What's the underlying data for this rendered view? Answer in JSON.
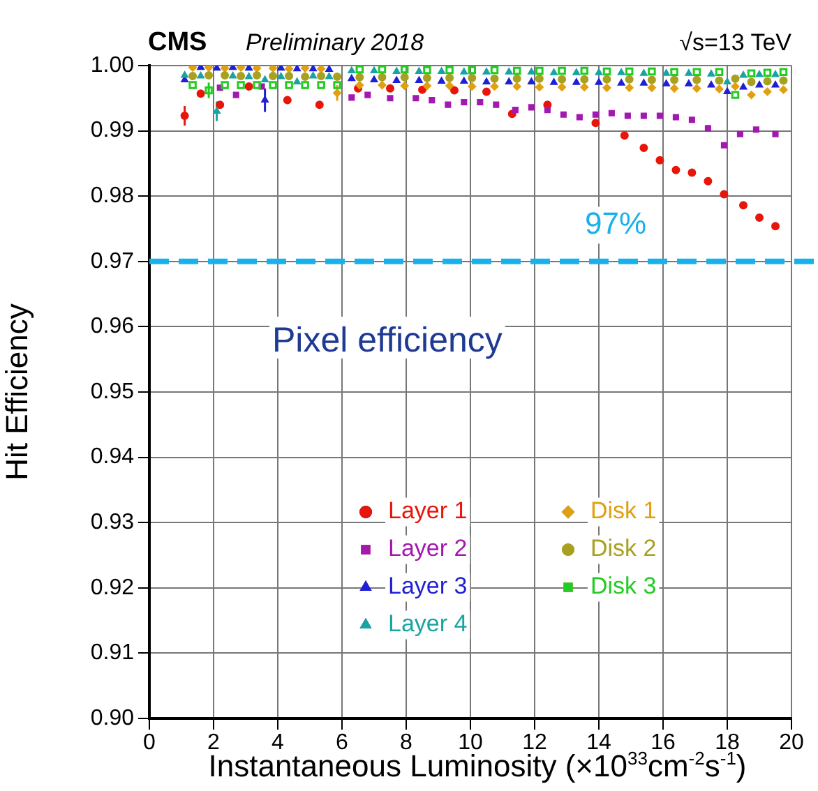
{
  "chart_data": {
    "type": "scatter",
    "title": "CMS",
    "subtitle": "Preliminary 2018",
    "xlabel": "Instantaneous Luminosity (×10$^{33}$cm$^{-2}$s$^{-1}$)",
    "ylabel": "Hit Efficiency",
    "annotations": [
      "√s=13 TeV",
      "Pixel efficiency"
    ],
    "xlim": [
      0,
      20
    ],
    "xticks": [
      0,
      2,
      4,
      6,
      8,
      10,
      12,
      14,
      16,
      18,
      20
    ],
    "ylim": [
      0.9,
      1.0
    ],
    "yticks": [
      {
        "value": 0.9,
        "label": "0.90"
      },
      {
        "value": 0.91,
        "label": "0.91"
      },
      {
        "value": 0.92,
        "label": "0.92"
      },
      {
        "value": 0.93,
        "label": "0.93"
      },
      {
        "value": 0.94,
        "label": "0.94"
      },
      {
        "value": 0.95,
        "label": "0.95"
      },
      {
        "value": 0.96,
        "label": "0.96"
      },
      {
        "value": 0.97,
        "label": "0.97"
      },
      {
        "value": 0.98,
        "label": "0.98"
      },
      {
        "value": 0.99,
        "label": "0.99"
      },
      {
        "value": 1.0,
        "label": "1.00"
      }
    ],
    "grid": true,
    "legend": "bottom",
    "ref_lines": [
      {
        "axis": "y",
        "value": 0.97,
        "label": "97%",
        "color": "#1ab0ec",
        "line_style": "dashed"
      }
    ],
    "series": [
      {
        "name": "Layer 1",
        "color": "#e8150b",
        "marker": "circle",
        "x": [
          1.1,
          1.6,
          2.2,
          3.1,
          4.3,
          5.3,
          6.5,
          7.5,
          8.5,
          9.5,
          10.5,
          11.3,
          12.4,
          13.4,
          13.9,
          14.8,
          15.4,
          15.9,
          16.4,
          16.9,
          17.4,
          17.9,
          18.5,
          19.0,
          19.5
        ],
        "values": [
          0.9923,
          0.9957,
          0.994,
          0.9968,
          0.9947,
          0.994,
          0.9965,
          0.9965,
          0.9963,
          0.9962,
          0.996,
          0.9926,
          0.994,
          null,
          0.9912,
          0.9893,
          0.9874,
          0.9855,
          0.984,
          0.9836,
          0.9823,
          0.9803,
          0.9786,
          0.9767,
          0.9754
        ],
        "errors": [
          0.0015,
          0.0005,
          0.0005,
          0.0005,
          0.0005,
          0.0003,
          null,
          null,
          null,
          null,
          null,
          null,
          null,
          null,
          null,
          null,
          null,
          null,
          null,
          null,
          null,
          null,
          null,
          null,
          null
        ]
      },
      {
        "name": "Layer 2",
        "color": "#a318b0",
        "marker": "square",
        "x": [
          2.2,
          2.7,
          3.5,
          6.3,
          6.8,
          7.5,
          8.3,
          8.8,
          9.3,
          9.8,
          10.3,
          10.8,
          11.4,
          11.9,
          12.4,
          12.9,
          13.4,
          13.9,
          14.4,
          14.9,
          15.4,
          15.9,
          16.4,
          16.9,
          17.4,
          17.9,
          18.4,
          18.9,
          19.5
        ],
        "values": [
          0.9966,
          0.9955,
          0.9968,
          0.9951,
          0.9955,
          0.995,
          0.995,
          0.9947,
          0.994,
          0.9944,
          0.9944,
          0.994,
          0.9932,
          0.9936,
          0.9932,
          0.9925,
          0.9921,
          0.9925,
          0.9927,
          0.9923,
          0.9923,
          0.9923,
          0.9921,
          0.9917,
          0.9904,
          0.9878,
          0.9895,
          0.9902,
          0.9895
        ]
      },
      {
        "name": "Layer 3",
        "color": "#1f1fd6",
        "marker": "triangle",
        "x": [
          1.1,
          1.6,
          2.1,
          2.6,
          3.1,
          3.6,
          4.1,
          4.6,
          5.1,
          5.6,
          6.3,
          7,
          7.7,
          8.4,
          9.1,
          9.8,
          10.5,
          11.2,
          11.9,
          12.6,
          13.3,
          14,
          14.7,
          15.4,
          16.1,
          16.8,
          17.5,
          18,
          18.5,
          19,
          19.5
        ],
        "values": [
          0.9978,
          0.9997,
          0.9996,
          0.9997,
          0.9996,
          0.9947,
          0.9996,
          0.9995,
          0.9995,
          0.9994,
          0.998,
          0.9978,
          0.9977,
          0.9977,
          0.9976,
          0.9976,
          0.9975,
          0.9975,
          0.9975,
          0.9974,
          0.9974,
          0.9974,
          0.9973,
          0.9973,
          0.9972,
          0.9972,
          0.997,
          0.996,
          0.9967,
          0.997,
          0.997
        ],
        "errors": [
          null,
          null,
          null,
          null,
          null,
          0.0018,
          null,
          null,
          null,
          null,
          null,
          null,
          null,
          null,
          null,
          null,
          null,
          null,
          null,
          null,
          null,
          null,
          null,
          null,
          null,
          null,
          null,
          null,
          null,
          null,
          null
        ]
      },
      {
        "name": "Layer 4",
        "color": "#1aa3a3",
        "marker": "triangle",
        "x": [
          1.1,
          1.6,
          2.1,
          2.6,
          3.1,
          3.6,
          4.1,
          4.6,
          5.1,
          5.6,
          6.3,
          7,
          7.7,
          8.4,
          9.1,
          9.8,
          10.5,
          11.2,
          11.9,
          12.6,
          13.3,
          14,
          14.7,
          15.4,
          16.1,
          16.8,
          17.5,
          18,
          18.5,
          19,
          19.5
        ],
        "values": [
          0.9985,
          0.9984,
          0.993,
          0.9984,
          0.9983,
          0.9978,
          0.9983,
          0.9975,
          0.9984,
          0.9983,
          0.9992,
          0.9992,
          0.9991,
          0.9991,
          0.9991,
          0.999,
          0.999,
          0.999,
          0.999,
          0.9989,
          0.9989,
          0.9989,
          0.9989,
          0.9988,
          0.9988,
          0.9988,
          0.9987,
          0.9975,
          0.9985,
          0.9986,
          0.9986
        ],
        "errors": [
          null,
          null,
          0.0015,
          null,
          null,
          null,
          null,
          null,
          null,
          null,
          null,
          null,
          null,
          null,
          null,
          null,
          null,
          null,
          null,
          null,
          null,
          null,
          null,
          null,
          null,
          null,
          null,
          null,
          null,
          null,
          null
        ]
      },
      {
        "name": "Disk 1",
        "color": "#e0a010",
        "marker": "diamond",
        "x": [
          1.35,
          1.85,
          2.35,
          2.85,
          3.35,
          3.85,
          4.35,
          4.85,
          5.35,
          5.85,
          6.55,
          7.25,
          7.95,
          8.65,
          9.35,
          10.05,
          10.75,
          11.45,
          12.15,
          12.85,
          13.55,
          14.25,
          14.95,
          15.65,
          16.35,
          17.05,
          17.75,
          18.25,
          18.75,
          19.25,
          19.75
        ],
        "values": [
          0.9997,
          0.9997,
          0.9996,
          0.9997,
          0.9996,
          0.9996,
          0.9995,
          0.9996,
          0.9995,
          0.9958,
          0.997,
          0.997,
          0.9969,
          0.9969,
          0.9969,
          0.9968,
          0.9968,
          0.9968,
          0.9967,
          0.9967,
          0.9967,
          0.9966,
          0.9966,
          0.9966,
          0.9965,
          0.9965,
          0.9964,
          0.9968,
          0.9955,
          0.996,
          0.9963
        ],
        "errors": [
          null,
          null,
          null,
          null,
          null,
          null,
          null,
          null,
          null,
          0.0012,
          null,
          null,
          null,
          null,
          null,
          null,
          null,
          null,
          null,
          null,
          null,
          null,
          null,
          null,
          null,
          null,
          null,
          null,
          null,
          null,
          null
        ]
      },
      {
        "name": "Disk 2",
        "color": "#a8a020",
        "marker": "circle",
        "x": [
          1.35,
          1.85,
          2.35,
          2.85,
          3.35,
          3.85,
          4.35,
          4.85,
          5.35,
          5.85,
          6.55,
          7.25,
          7.95,
          8.65,
          9.35,
          10.05,
          10.75,
          11.45,
          12.15,
          12.85,
          13.55,
          14.25,
          14.95,
          15.65,
          16.35,
          17.05,
          17.75,
          18.25,
          18.75,
          19.25,
          19.75
        ],
        "values": [
          0.9984,
          0.9985,
          0.9985,
          0.9984,
          0.9985,
          0.9984,
          0.9984,
          0.9983,
          0.9984,
          0.9983,
          0.9982,
          0.9982,
          0.9982,
          0.9981,
          0.9981,
          0.9981,
          0.998,
          0.998,
          0.998,
          0.9979,
          0.9979,
          0.9979,
          0.9979,
          0.9978,
          0.9978,
          0.9978,
          0.9977,
          0.998,
          0.9975,
          0.9976,
          0.9977
        ]
      },
      {
        "name": "Disk 3",
        "color": "#22cc22",
        "marker": "square",
        "x": [
          1.35,
          1.85,
          2.35,
          2.85,
          3.35,
          3.85,
          4.35,
          4.85,
          5.35,
          5.85,
          6.55,
          7.25,
          7.95,
          8.65,
          9.35,
          10.05,
          10.75,
          11.45,
          12.15,
          12.85,
          13.55,
          14.25,
          14.95,
          15.65,
          16.35,
          17.05,
          17.75,
          18.25,
          18.75,
          19.25,
          19.75
        ],
        "values": [
          0.997,
          0.9962,
          0.997,
          0.997,
          0.997,
          0.997,
          0.997,
          0.997,
          0.997,
          0.997,
          0.9994,
          0.9994,
          0.9994,
          0.9993,
          0.9993,
          0.9993,
          0.9993,
          0.9992,
          0.9992,
          0.9992,
          0.9992,
          0.9991,
          0.9991,
          0.9991,
          0.999,
          0.999,
          0.999,
          0.9955,
          0.9988,
          0.9989,
          0.999
        ],
        "errors": [
          null,
          0.0012,
          null,
          null,
          null,
          null,
          null,
          null,
          null,
          null,
          null,
          null,
          null,
          null,
          null,
          null,
          null,
          null,
          null,
          null,
          null,
          null,
          null,
          null,
          null,
          null,
          null,
          null,
          null,
          null,
          null
        ]
      }
    ]
  }
}
